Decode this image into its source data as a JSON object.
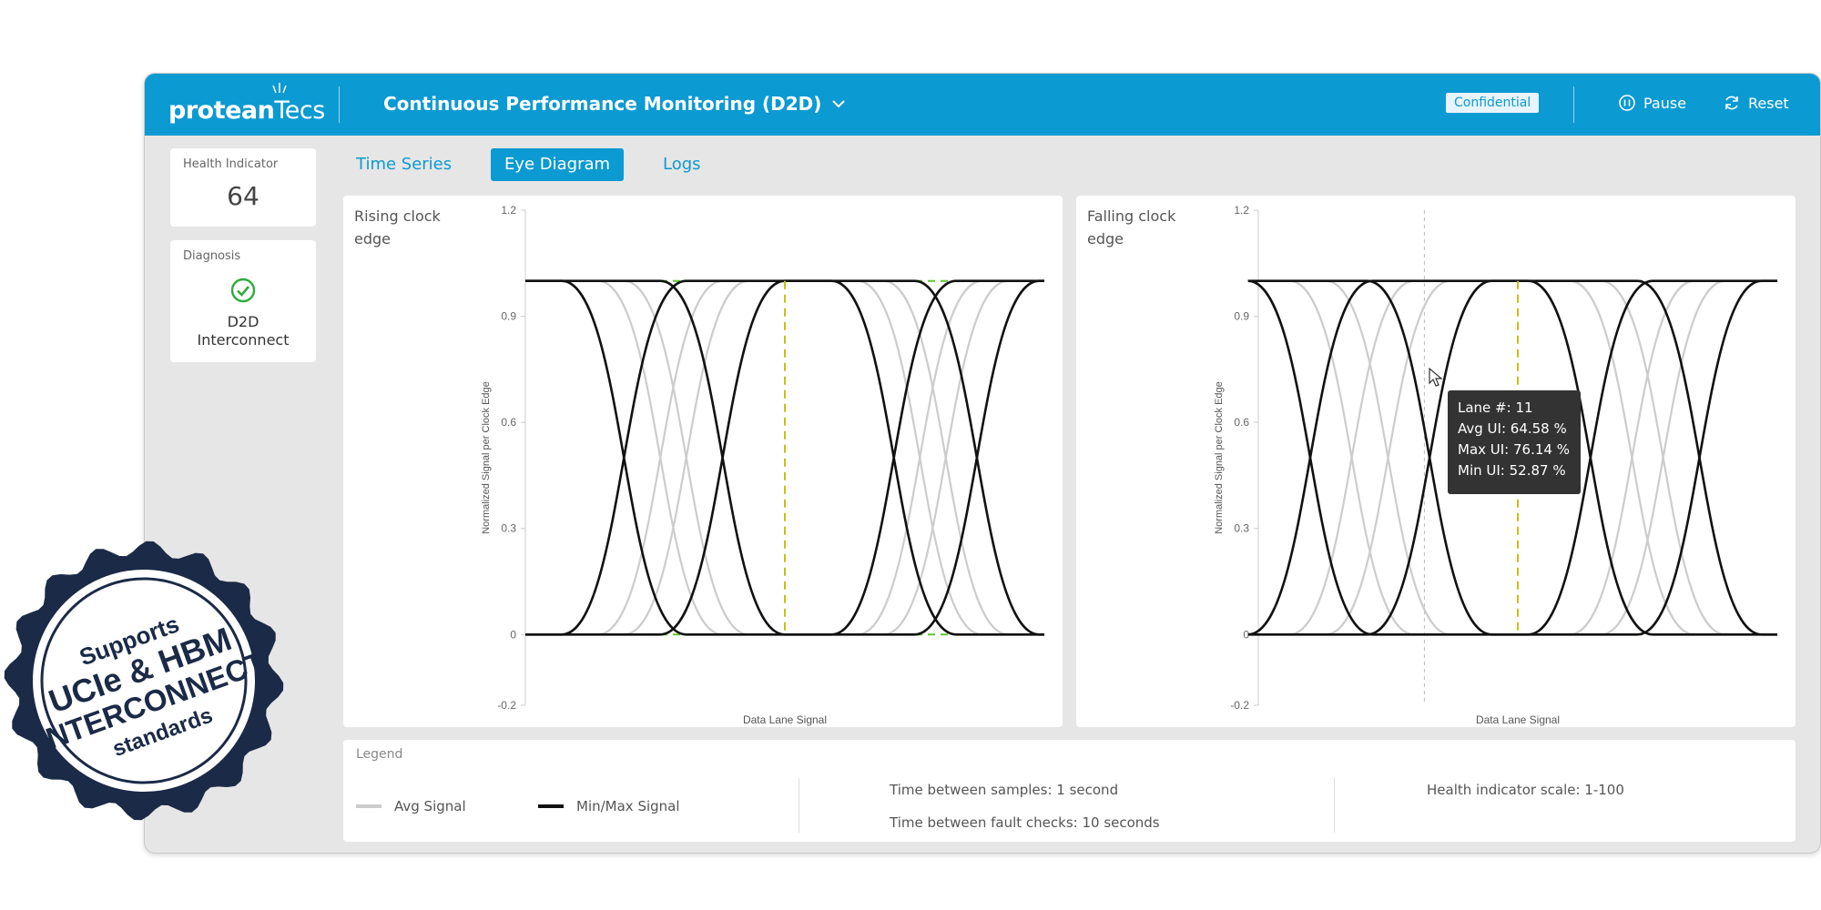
{
  "header": {
    "logo_part1": "protean",
    "logo_part2": "Tecs",
    "title": "Continuous Performance Monitoring (D2D)",
    "badge": "Confidential",
    "pause_label": "Pause",
    "reset_label": "Reset",
    "color": "#0c9ad2"
  },
  "health": {
    "label": "Health Indicator",
    "value": "64"
  },
  "diagnosis": {
    "label": "Diagnosis",
    "line1": "D2D",
    "line2": "Interconnect",
    "status_color": "#2eab3c"
  },
  "tabs": [
    {
      "label": "Time Series",
      "active": false
    },
    {
      "label": "Eye Diagram",
      "active": true
    },
    {
      "label": "Logs",
      "active": false
    }
  ],
  "chart_data": [
    {
      "type": "line",
      "title": "Rising clock edge",
      "xlabel": "Data Lane Signal",
      "ylabel": "Normalized Signal per Clock Edge",
      "ylim": [
        -0.2,
        1.2
      ],
      "yticks": [
        "1.2",
        "0.9",
        "0.6",
        "0.3",
        "0",
        "-0.2"
      ],
      "high_level": 1.0,
      "low_level": 0.0,
      "series": [
        {
          "style": "avg",
          "cross1": 0.26,
          "cross2": 0.76
        },
        {
          "style": "avg",
          "cross1": 0.31,
          "cross2": 0.81
        },
        {
          "style": "minmax",
          "cross1": 0.19,
          "cross2": 0.71
        },
        {
          "style": "minmax",
          "cross1": 0.38,
          "cross2": 0.87
        }
      ],
      "center_line": 0.5
    },
    {
      "type": "line",
      "title": "Falling clock edge",
      "xlabel": "Data Lane Signal",
      "ylabel": "Normalized Signal per Clock Edge",
      "ylim": [
        -0.2,
        1.2
      ],
      "yticks": [
        "1.2",
        "0.9",
        "0.6",
        "0.3",
        "0",
        "-0.2"
      ],
      "high_level": 1.0,
      "low_level": 0.0,
      "series": [
        {
          "style": "avg",
          "cross1": 0.18,
          "cross2": 0.72
        },
        {
          "style": "avg",
          "cross1": 0.25,
          "cross2": 0.78
        },
        {
          "style": "minmax",
          "cross1": 0.1,
          "cross2": 0.64
        },
        {
          "style": "minmax",
          "cross1": 0.33,
          "cross2": 0.85
        }
      ],
      "center_line": 0.5,
      "hover_line": 0.32
    }
  ],
  "tooltip": {
    "lane": "Lane #: 11",
    "avg": "Avg UI: 64.58 %",
    "max": "Max UI: 76.14 %",
    "min": "Min UI: 52.87 %"
  },
  "legend": {
    "title": "Legend",
    "avg_label": "Avg Signal",
    "minmax_label": "Min/Max Signal",
    "avg_color": "#cccccc",
    "minmax_color": "#111111",
    "samples": "Time between samples: 1 second",
    "faults": "Time between fault checks: 10 seconds",
    "scale": "Health indicator scale: 1-100"
  },
  "stamp": {
    "line1": "Supports",
    "line2": "UCIe & HBM",
    "line3": "INTERCONNECT",
    "line4": "standards"
  }
}
